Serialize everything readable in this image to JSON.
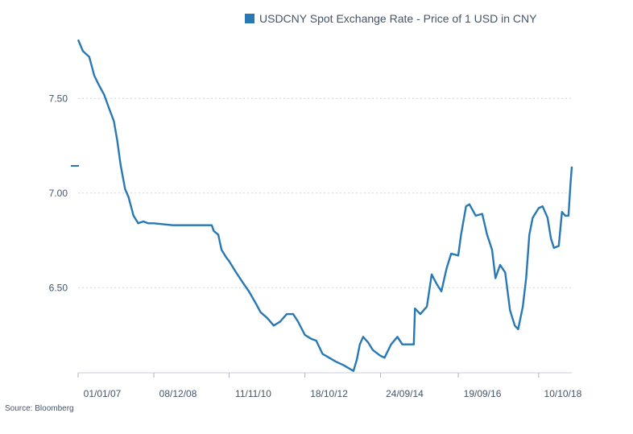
{
  "chart_data": {
    "type": "line",
    "title": "",
    "xlabel": "",
    "ylabel": "",
    "legend": {
      "position": "top-right",
      "entries": [
        "USDCNY Spot Exchange Rate - Price of 1 USD in CNY"
      ]
    },
    "ylim": [
      6.05,
      7.85
    ],
    "y_ticks": [
      6.5,
      7.0,
      7.5
    ],
    "y_tick_labels": [
      "6.50",
      "7.00",
      "7.50"
    ],
    "x_range": [
      "2007-01-01",
      "2019-08-15"
    ],
    "x_ticks": [
      "2007-01-01",
      "2008-12-08",
      "2010-11-11",
      "2012-10-18",
      "2014-09-24",
      "2016-09-19",
      "2018-10-10"
    ],
    "x_tick_labels": [
      "01/01/07",
      "08/12/08",
      "11/11/10",
      "18/10/12",
      "24/09/14",
      "19/09/16",
      "10/10/18"
    ],
    "grid": "horizontal dotted",
    "source": "Source: Bloomberg",
    "series": [
      {
        "name": "USDCNY Spot Exchange Rate - Price of 1 USD in CNY",
        "color": "#2878b4",
        "points": [
          [
            "2007-01-01",
            7.81
          ],
          [
            "2007-02-15",
            7.75
          ],
          [
            "2007-04-15",
            7.72
          ],
          [
            "2007-06-01",
            7.62
          ],
          [
            "2007-07-15",
            7.57
          ],
          [
            "2007-09-01",
            7.52
          ],
          [
            "2007-10-15",
            7.45
          ],
          [
            "2007-12-01",
            7.38
          ],
          [
            "2008-01-01",
            7.28
          ],
          [
            "2008-02-01",
            7.15
          ],
          [
            "2008-03-15",
            7.02
          ],
          [
            "2008-04-15",
            6.98
          ],
          [
            "2008-06-01",
            6.88
          ],
          [
            "2008-07-15",
            6.84
          ],
          [
            "2008-09-01",
            6.85
          ],
          [
            "2008-10-15",
            6.84
          ],
          [
            "2008-12-08",
            6.84
          ],
          [
            "2009-06-01",
            6.83
          ],
          [
            "2010-01-01",
            6.83
          ],
          [
            "2010-06-01",
            6.83
          ],
          [
            "2010-06-20",
            6.8
          ],
          [
            "2010-08-01",
            6.78
          ],
          [
            "2010-09-01",
            6.7
          ],
          [
            "2010-10-15",
            6.66
          ],
          [
            "2010-11-11",
            6.64
          ],
          [
            "2011-01-15",
            6.58
          ],
          [
            "2011-03-15",
            6.53
          ],
          [
            "2011-05-15",
            6.48
          ],
          [
            "2011-07-15",
            6.42
          ],
          [
            "2011-09-01",
            6.37
          ],
          [
            "2011-11-01",
            6.34
          ],
          [
            "2012-01-01",
            6.3
          ],
          [
            "2012-03-01",
            6.32
          ],
          [
            "2012-05-01",
            6.36
          ],
          [
            "2012-07-01",
            6.36
          ],
          [
            "2012-08-15",
            6.32
          ],
          [
            "2012-10-18",
            6.25
          ],
          [
            "2012-12-15",
            6.23
          ],
          [
            "2013-02-01",
            6.22
          ],
          [
            "2013-04-01",
            6.15
          ],
          [
            "2013-06-01",
            6.13
          ],
          [
            "2013-08-01",
            6.11
          ],
          [
            "2013-10-15",
            6.09
          ],
          [
            "2013-12-15",
            6.07
          ],
          [
            "2014-01-15",
            6.06
          ],
          [
            "2014-02-15",
            6.12
          ],
          [
            "2014-03-15",
            6.2
          ],
          [
            "2014-04-15",
            6.24
          ],
          [
            "2014-06-01",
            6.21
          ],
          [
            "2014-07-15",
            6.17
          ],
          [
            "2014-09-24",
            6.14
          ],
          [
            "2014-11-01",
            6.13
          ],
          [
            "2015-01-01",
            6.2
          ],
          [
            "2015-03-01",
            6.24
          ],
          [
            "2015-04-15",
            6.2
          ],
          [
            "2015-06-01",
            6.2
          ],
          [
            "2015-08-01",
            6.2
          ],
          [
            "2015-08-12",
            6.39
          ],
          [
            "2015-10-01",
            6.36
          ],
          [
            "2015-12-01",
            6.4
          ],
          [
            "2016-01-15",
            6.57
          ],
          [
            "2016-03-01",
            6.52
          ],
          [
            "2016-04-15",
            6.48
          ],
          [
            "2016-06-01",
            6.6
          ],
          [
            "2016-07-15",
            6.68
          ],
          [
            "2016-09-19",
            6.67
          ],
          [
            "2016-10-15",
            6.78
          ],
          [
            "2016-12-01",
            6.93
          ],
          [
            "2017-01-01",
            6.94
          ],
          [
            "2017-03-01",
            6.88
          ],
          [
            "2017-05-01",
            6.89
          ],
          [
            "2017-06-15",
            6.78
          ],
          [
            "2017-08-01",
            6.7
          ],
          [
            "2017-09-01",
            6.55
          ],
          [
            "2017-10-15",
            6.62
          ],
          [
            "2017-12-01",
            6.58
          ],
          [
            "2018-01-15",
            6.38
          ],
          [
            "2018-03-01",
            6.3
          ],
          [
            "2018-04-01",
            6.28
          ],
          [
            "2018-05-15",
            6.4
          ],
          [
            "2018-06-15",
            6.55
          ],
          [
            "2018-07-15",
            6.78
          ],
          [
            "2018-08-15",
            6.87
          ],
          [
            "2018-10-10",
            6.92
          ],
          [
            "2018-11-15",
            6.93
          ],
          [
            "2019-01-01",
            6.87
          ],
          [
            "2019-02-01",
            6.76
          ],
          [
            "2019-03-01",
            6.71
          ],
          [
            "2019-04-15",
            6.72
          ],
          [
            "2019-05-15",
            6.9
          ],
          [
            "2019-06-15",
            6.88
          ],
          [
            "2019-07-15",
            6.88
          ],
          [
            "2019-08-01",
            7.03
          ],
          [
            "2019-08-15",
            7.14
          ]
        ]
      }
    ]
  }
}
